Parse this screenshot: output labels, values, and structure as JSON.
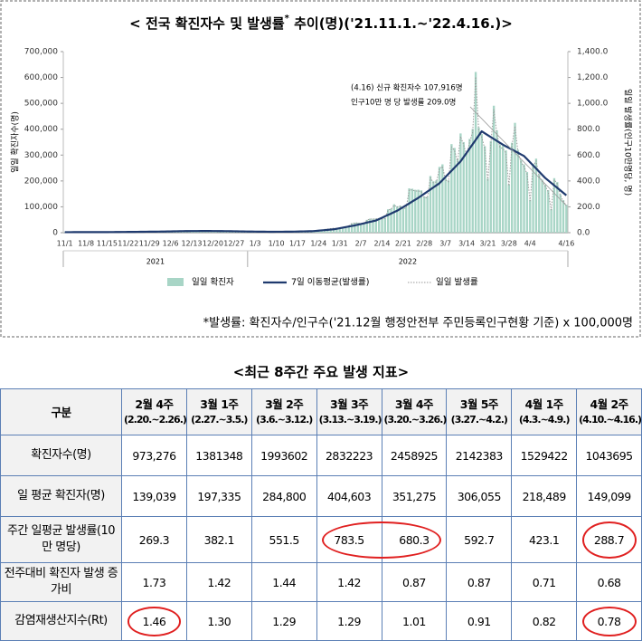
{
  "chart_data": {
    "type": "bar_line",
    "title_parts": [
      "< 전국 확진자수 및 발생률",
      "*",
      " 추이(명)('21.11.1.~'22.4.16.)>"
    ],
    "y_label": "일일 확진자수(명)",
    "y2_label": "일일 발생률(인구10만명당, 명)",
    "annotation": [
      "(4.16) 신규 확진자수 107,916명",
      "인구10만 명 당 발생률 209.0명"
    ],
    "footnote": "*발생률: 확진자수/인구수('21.12월 행정안전부 주민등록인구현황 기준) x 100,000명",
    "years": [
      "2021",
      "2022"
    ],
    "categories": [
      "11/1",
      null,
      null,
      null,
      null,
      null,
      null,
      "11/8",
      null,
      null,
      null,
      null,
      null,
      null,
      "11/15",
      null,
      null,
      null,
      null,
      null,
      null,
      "11/22",
      null,
      null,
      null,
      null,
      null,
      null,
      "11/29",
      null,
      null,
      null,
      null,
      null,
      null,
      "12/6",
      null,
      null,
      null,
      null,
      null,
      null,
      "12/13",
      null,
      null,
      null,
      null,
      null,
      null,
      "12/20",
      null,
      null,
      null,
      null,
      null,
      null,
      "12/27",
      null,
      null,
      null,
      null,
      null,
      null,
      "1/3",
      null,
      null,
      null,
      null,
      null,
      null,
      "1/10",
      null,
      null,
      null,
      null,
      null,
      null,
      "1/17",
      null,
      null,
      null,
      null,
      null,
      null,
      "1/24",
      null,
      null,
      null,
      null,
      null,
      null,
      "1/31",
      null,
      null,
      null,
      null,
      null,
      null,
      "2/7",
      null,
      null,
      null,
      null,
      null,
      null,
      "2/14",
      null,
      null,
      null,
      null,
      null,
      null,
      "2/21",
      null,
      null,
      null,
      null,
      null,
      null,
      "2/28",
      null,
      null,
      null,
      null,
      null,
      null,
      "3/7",
      null,
      null,
      null,
      null,
      null,
      null,
      "3/14",
      null,
      null,
      null,
      null,
      null,
      null,
      "3/21",
      null,
      null,
      null,
      null,
      null,
      null,
      "3/28",
      null,
      null,
      null,
      null,
      null,
      null,
      "4/4",
      null,
      null,
      null,
      null,
      null,
      null,
      null,
      null,
      null,
      null,
      null,
      "4/16"
    ],
    "ylim": [
      0,
      700000
    ],
    "yticks": [
      0,
      {
        "value": 100000,
        "label": "100,000"
      },
      {
        "value": 200000,
        "label": "200,000"
      },
      {
        "value": 300000,
        "label": "300,000"
      },
      {
        "value": 400000,
        "label": "400,000"
      },
      {
        "value": 500000,
        "label": "500,000"
      },
      {
        "value": 600000,
        "label": "600,000"
      },
      {
        "value": 700000,
        "label": "700,000"
      }
    ],
    "y2lim": [
      0,
      1400
    ],
    "y2ticks": [
      {
        "value": 0,
        "label": "0.0"
      },
      {
        "value": 200,
        "label": "200.0"
      },
      {
        "value": 400,
        "label": "400.0"
      },
      {
        "value": 600,
        "label": "600.0"
      },
      {
        "value": 800,
        "label": "800.0"
      },
      {
        "value": 1000,
        "label": "1,000.0"
      },
      {
        "value": 1200,
        "label": "1,200.0"
      },
      {
        "value": 1400,
        "label": "1,400.0"
      }
    ],
    "series": [
      {
        "name": "일일 확진자",
        "type": "bar",
        "color": "#a8d5c6",
        "values": [
          1686,
          1589,
          2667,
          2482,
          2344,
          2248,
          2224,
          1758,
          1715,
          2425,
          2520,
          2368,
          2324,
          2419,
          2006,
          2125,
          3187,
          3292,
          3034,
          3206,
          3120,
          2827,
          2699,
          4115,
          3937,
          3899,
          4068,
          3925,
          3308,
          3032,
          5123,
          5266,
          4944,
          5352,
          5128,
          4325,
          4954,
          7175,
          7102,
          7022,
          6977,
          6689,
          5817,
          5567,
          7850,
          7622,
          7435,
          7314,
          6236,
          5318,
          5202,
          7456,
          6919,
          6233,
          5842,
          5419,
          4207,
          3865,
          5409,
          5037,
          4875,
          4416,
          3833,
          3126,
          4442,
          4125,
          3713,
          3510,
          3376,
          3371,
          3005,
          3094,
          4385,
          4167,
          4542,
          4625,
          4193,
          3857,
          4071,
          5805,
          6603,
          6769,
          7009,
          7630,
          7513,
          8571,
          13012,
          14518,
          16096,
          17542,
          17079,
          18342,
          20270,
          22907,
          27443,
          36362,
          38691,
          38689,
          35286,
          36719,
          49567,
          54122,
          53926,
          54941,
          56431,
          54619,
          57177,
          90443,
          93135,
          109831,
          102211,
          104829,
          95362,
          99573,
          171452,
          170016,
          165890,
          166209,
          163565,
          139626,
          138993,
          219241,
          198803,
          202721,
          254327,
          264171,
          210716,
          202721,
          342446,
          327549,
          282987,
          383665,
          350190,
          309790,
          362338,
          400741,
          621328,
          407017,
          381454,
          334708,
          209169,
          353980,
          490881,
          395598,
          339514,
          335580,
          318130,
          187213,
          347554,
          424641,
          320743,
          280273,
          264171,
          234301,
          127190,
          266135,
          286294,
          224820,
          205333,
          185566,
          164481,
          90928,
          210755,
          195419,
          148443,
          125846,
          107916
        ]
      },
      {
        "name": "7일 이동평균(발생률)",
        "type": "line",
        "axis": "y2",
        "color": "#1f3a6e",
        "values": [
          3.9,
          4.0,
          4.0,
          4.1,
          4.1,
          4.2,
          4.2,
          4.2,
          4.2,
          4.3,
          4.3,
          4.3,
          4.3,
          4.5,
          4.6,
          4.8,
          5.0,
          5.1,
          5.3,
          5.5,
          5.7,
          6.0,
          6.2,
          6.4,
          6.6,
          6.9,
          7.1,
          7.4,
          7.6,
          7.9,
          8.1,
          8.4,
          8.6,
          8.9,
          9.4,
          9.8,
          10.3,
          10.8,
          11.3,
          11.7,
          12.2,
          12.3,
          12.5,
          12.6,
          12.8,
          12.9,
          13.1,
          13.2,
          13.0,
          12.8,
          12.6,
          12.4,
          12.1,
          11.9,
          11.7,
          11.3,
          10.9,
          10.5,
          10.1,
          9.6,
          9.2,
          8.8,
          8.6,
          8.3,
          8.1,
          7.8,
          7.6,
          7.3,
          7.1,
          7.2,
          7.3,
          7.4,
          7.5,
          7.6,
          7.7,
          7.8,
          8.3,
          8.9,
          9.4,
          10.0,
          10.5,
          11.1,
          11.6,
          13.7,
          15.7,
          17.8,
          19.9,
          22.0,
          24.0,
          26.1,
          30.4,
          34.7,
          39.0,
          43.2,
          47.5,
          51.8,
          56.1,
          61.6,
          67.0,
          72.5,
          78.0,
          83.5,
          88.9,
          94.4,
          105.1,
          115.9,
          126.6,
          137.4,
          148.0,
          158.8,
          169.5,
          183.8,
          198.0,
          212.3,
          226.5,
          240.8,
          255.0,
          269.3,
          285.4,
          301.5,
          317.6,
          333.8,
          349.9,
          366.0,
          382.1,
          406.3,
          430.5,
          454.7,
          478.9,
          503.1,
          527.3,
          551.5,
          584.6,
          617.8,
          650.9,
          684.1,
          717.2,
          750.4,
          783.5,
          768.8,
          754.0,
          739.3,
          724.5,
          709.8,
          695.0,
          680.3,
          667.8,
          655.3,
          642.8,
          630.2,
          617.7,
          605.2,
          592.7,
          568.5,
          544.2,
          520.0,
          495.8,
          471.6,
          447.3,
          423.1,
          403.9,
          384.7,
          365.5,
          346.3,
          327.1,
          307.9,
          288.7
        ]
      },
      {
        "name": "일일 발생률",
        "type": "dotted",
        "axis": "y2",
        "color": "#9a9a9a",
        "values": [
          3.3,
          3.1,
          5.2,
          4.8,
          4.5,
          4.4,
          4.3,
          3.4,
          3.3,
          4.7,
          4.9,
          4.6,
          4.5,
          4.7,
          3.9,
          4.1,
          6.2,
          6.4,
          5.9,
          6.2,
          6.0,
          5.5,
          5.2,
          8.0,
          7.6,
          7.6,
          7.9,
          7.6,
          6.4,
          5.9,
          9.9,
          10.2,
          9.6,
          10.4,
          9.9,
          8.4,
          9.6,
          13.9,
          13.8,
          13.6,
          13.5,
          13.0,
          11.3,
          10.8,
          15.2,
          14.8,
          14.4,
          14.2,
          12.1,
          10.3,
          10.1,
          14.4,
          13.4,
          12.1,
          11.3,
          10.5,
          8.2,
          7.5,
          10.5,
          9.8,
          9.4,
          8.6,
          7.4,
          6.1,
          8.6,
          8.0,
          7.2,
          6.8,
          6.5,
          6.5,
          5.8,
          6.0,
          8.5,
          8.1,
          8.8,
          9.0,
          8.1,
          7.5,
          7.9,
          11.3,
          12.8,
          13.1,
          13.6,
          14.8,
          14.6,
          16.6,
          25.2,
          28.1,
          31.2,
          34.0,
          33.1,
          35.5,
          39.3,
          44.4,
          53.2,
          70.5,
          75.0,
          75.0,
          68.4,
          71.2,
          96.1,
          104.9,
          104.5,
          106.5,
          109.4,
          105.9,
          110.8,
          175.3,
          180.5,
          212.8,
          198.1,
          203.2,
          184.8,
          193.0,
          332.3,
          329.5,
          321.5,
          322.1,
          317.0,
          270.6,
          269.4,
          424.9,
          385.3,
          392.9,
          492.9,
          512.0,
          408.4,
          392.9,
          663.7,
          634.8,
          548.4,
          743.5,
          678.7,
          600.4,
          702.2,
          776.6,
          1204.1,
          788.8,
          739.3,
          648.7,
          405.4,
          686.0,
          951.3,
          766.7,
          658.0,
          650.3,
          616.5,
          362.8,
          673.6,
          823.0,
          621.6,
          543.2,
          512.0,
          454.1,
          246.5,
          515.8,
          554.8,
          435.7,
          397.9,
          359.6,
          318.8,
          176.2,
          408.4,
          378.7,
          287.7,
          243.9,
          209.0
        ]
      }
    ]
  },
  "table": {
    "title": "<최근 8주간 주요 발생 지표>",
    "corner": "구분",
    "columns": [
      {
        "week": "2월 4주",
        "range": "(2.20.~2.26.)"
      },
      {
        "week": "3월 1주",
        "range": "(2.27.~3.5.)"
      },
      {
        "week": "3월 2주",
        "range": "(3.6.~3.12.)"
      },
      {
        "week": "3월 3주",
        "range": "(3.13.~3.19.)"
      },
      {
        "week": "3월 4주",
        "range": "(3.20.~3.26.)"
      },
      {
        "week": "3월 5주",
        "range": "(3.27.~4.2.)"
      },
      {
        "week": "4월 1주",
        "range": "(4.3.~4.9.)"
      },
      {
        "week": "4월 2주",
        "range": "(4.10.~4.16.)"
      }
    ],
    "rows": [
      {
        "label": "확진자수(명)",
        "cells": [
          "973,276",
          "1381348",
          "1993602",
          "2832223",
          "2458925",
          "2142383",
          "1529422",
          "1043695"
        ]
      },
      {
        "label": "일 평균 확진자(명)",
        "cells": [
          "139,039",
          "197,335",
          "284,800",
          "404,603",
          "351,275",
          "306,055",
          "218,489",
          "149,099"
        ]
      },
      {
        "label": "주간 일평균 발생률(10만 명당)",
        "cells": [
          "269.3",
          "382.1",
          "551.5",
          "783.5",
          "680.3",
          "592.7",
          "423.1",
          "288.7"
        ]
      },
      {
        "label": "전주대비 확진자 발생 증가비",
        "cells": [
          "1.73",
          "1.42",
          "1.44",
          "1.42",
          "0.87",
          "0.87",
          "0.71",
          "0.68"
        ]
      },
      {
        "label": "감염재생산지수(Rt)",
        "cells": [
          "1.46",
          "1.30",
          "1.29",
          "1.29",
          "1.01",
          "0.91",
          "0.82",
          "0.78"
        ]
      }
    ],
    "highlight": [
      [
        2,
        3,
        4
      ],
      [
        2,
        7,
        7
      ],
      [
        4,
        0,
        0
      ],
      [
        4,
        7,
        7
      ]
    ]
  }
}
